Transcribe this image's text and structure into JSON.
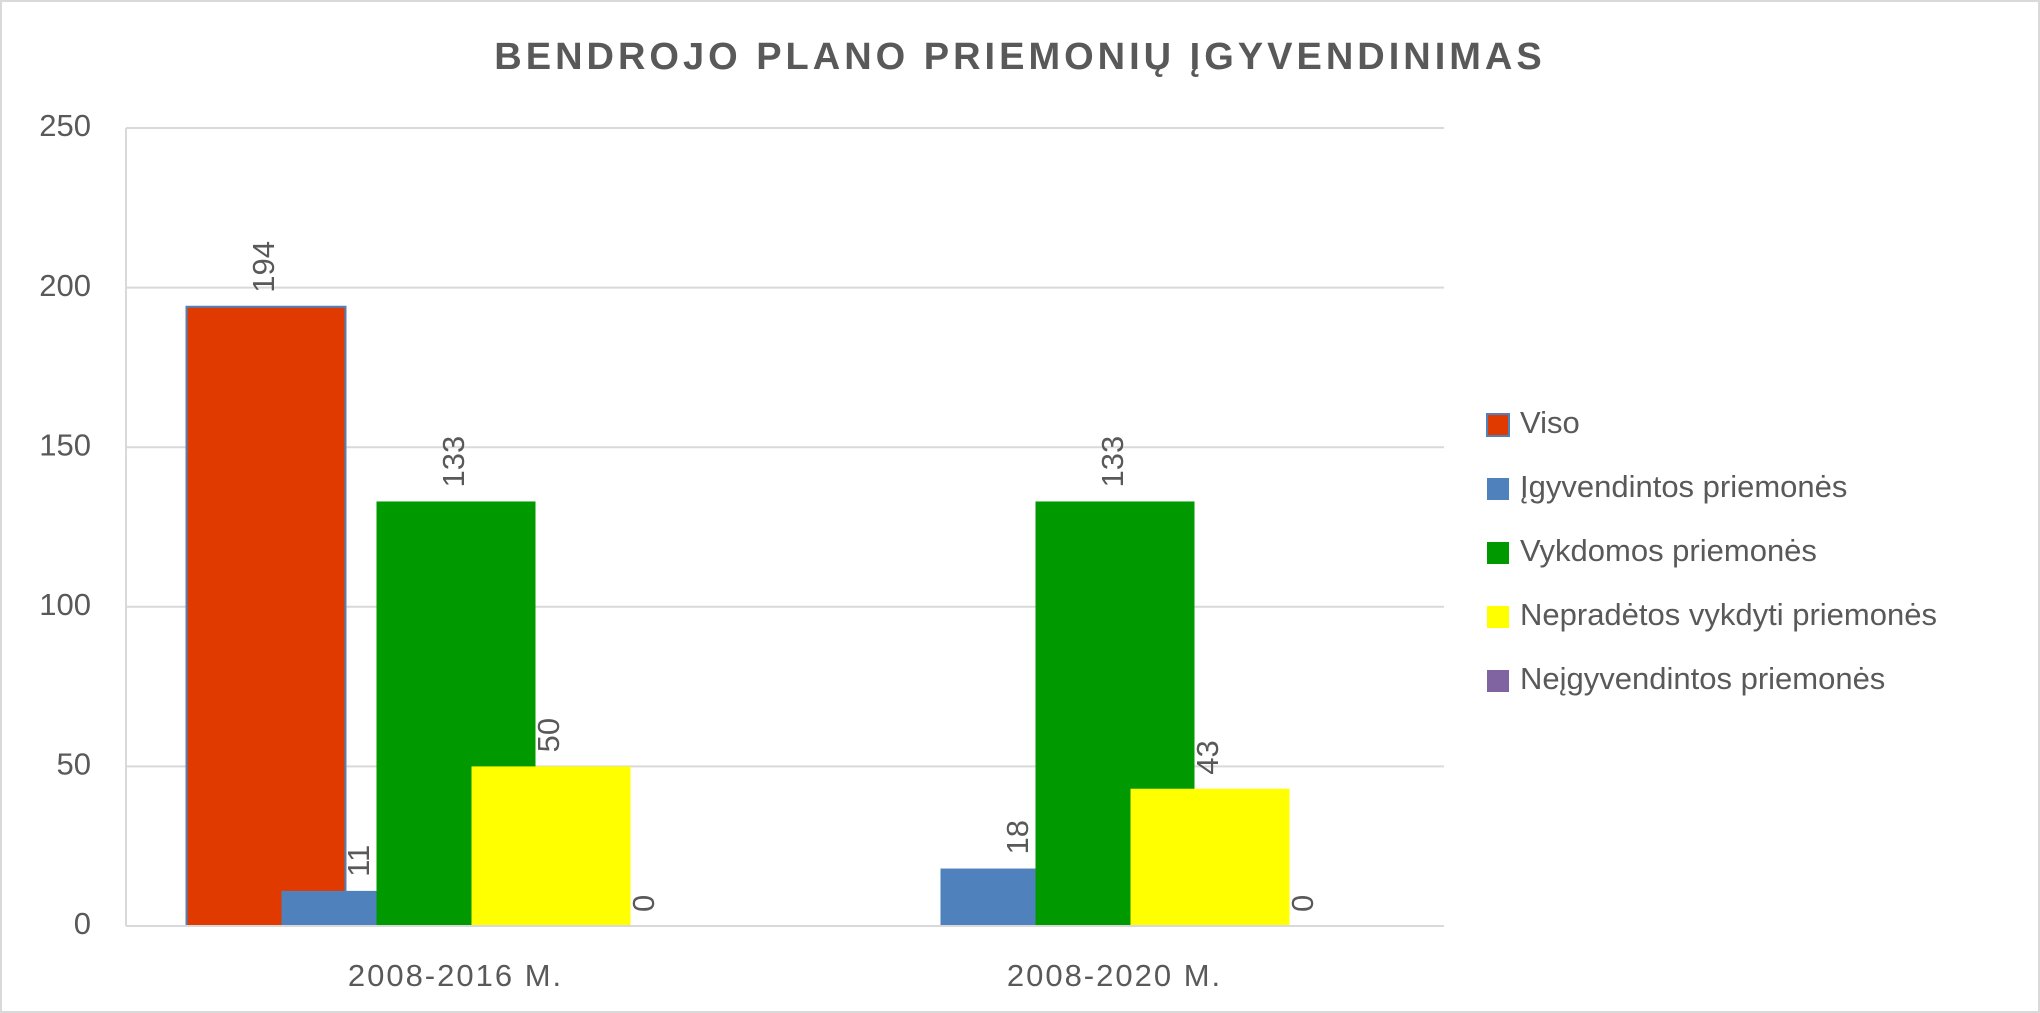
{
  "chart_data": {
    "type": "bar",
    "title": "BENDROJO PLANO PRIEMONIŲ ĮGYVENDINIMAS",
    "categories": [
      "2008-2016 M.",
      "2008-2020 M."
    ],
    "series": [
      {
        "name": "Viso",
        "color": "#e03a00",
        "values": [
          194,
          null
        ]
      },
      {
        "name": "Įgyvendintos priemonės",
        "color": "#4f81bd",
        "values": [
          11,
          18
        ]
      },
      {
        "name": "Vykdomos priemonės",
        "color": "#009a00",
        "values": [
          133,
          133
        ]
      },
      {
        "name": "Nepradėtos vykdyti priemonės",
        "color": "#ffff00",
        "values": [
          50,
          43
        ]
      },
      {
        "name": "Neįgyvendintos priemonės",
        "color": "#8064a2",
        "values": [
          0,
          0
        ]
      }
    ],
    "ylim": [
      0,
      250
    ],
    "yticks": [
      0,
      50,
      100,
      150,
      200,
      250
    ],
    "grid": true,
    "legend": "right"
  }
}
